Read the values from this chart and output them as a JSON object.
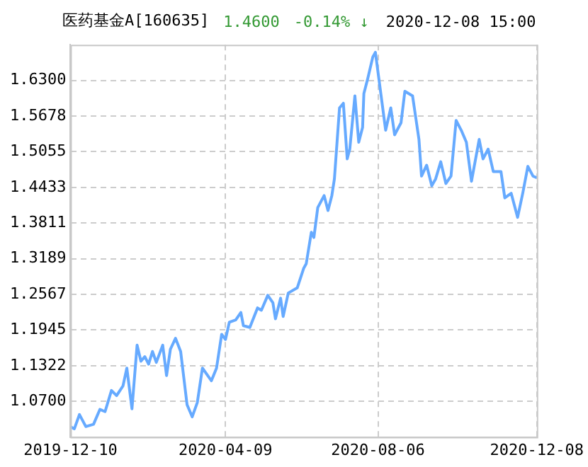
{
  "chart_data": {
    "type": "line",
    "title": "医药基金A[160635]",
    "annotations": [
      "1.4600",
      "-0.14% ↓",
      "2020-12-08 15:00"
    ],
    "x": [
      "2019-12-10",
      "2019-12-13",
      "2019-12-17",
      "2019-12-22",
      "2019-12-28",
      "2020-01-02",
      "2020-01-06",
      "2020-01-11",
      "2020-01-15",
      "2020-01-20",
      "2020-01-23",
      "2020-01-27",
      "2020-01-31",
      "2020-02-03",
      "2020-02-06",
      "2020-02-09",
      "2020-02-12",
      "2020-02-15",
      "2020-02-20",
      "2020-02-23",
      "2020-02-26",
      "2020-03-01",
      "2020-03-05",
      "2020-03-10",
      "2020-03-14",
      "2020-03-18",
      "2020-03-22",
      "2020-03-29",
      "2020-04-02",
      "2020-04-06",
      "2020-04-09",
      "2020-04-12",
      "2020-04-17",
      "2020-04-21",
      "2020-04-23",
      "2020-04-28",
      "2020-05-04",
      "2020-05-07",
      "2020-05-12",
      "2020-05-16",
      "2020-05-18",
      "2020-05-22",
      "2020-05-24",
      "2020-05-28",
      "2020-06-04",
      "2020-06-09",
      "2020-06-11",
      "2020-06-15",
      "2020-06-17",
      "2020-06-20",
      "2020-06-25",
      "2020-06-28",
      "2020-07-01",
      "2020-07-03",
      "2020-07-07",
      "2020-07-10",
      "2020-07-13",
      "2020-07-15",
      "2020-07-19",
      "2020-07-22",
      "2020-07-25",
      "2020-07-26",
      "2020-07-29",
      "2020-08-02",
      "2020-08-04",
      "2020-08-07",
      "2020-08-12",
      "2020-08-16",
      "2020-08-19",
      "2020-08-24",
      "2020-08-27",
      "2020-09-02",
      "2020-09-07",
      "2020-09-09",
      "2020-09-13",
      "2020-09-17",
      "2020-09-20",
      "2020-09-24",
      "2020-09-28",
      "2020-10-02",
      "2020-10-06",
      "2020-10-10",
      "2020-10-14",
      "2020-10-18",
      "2020-10-24",
      "2020-10-27",
      "2020-10-31",
      "2020-11-04",
      "2020-11-10",
      "2020-11-13",
      "2020-11-18",
      "2020-11-23",
      "2020-11-27",
      "2020-12-01",
      "2020-12-05",
      "2020-12-08"
    ],
    "series": [
      {
        "color": "#66aaff",
        "values": [
          1.026,
          1.022,
          1.047,
          1.026,
          1.03,
          1.056,
          1.052,
          1.089,
          1.08,
          1.097,
          1.128,
          1.057,
          1.168,
          1.14,
          1.148,
          1.135,
          1.157,
          1.138,
          1.168,
          1.115,
          1.161,
          1.18,
          1.157,
          1.064,
          1.043,
          1.068,
          1.128,
          1.106,
          1.128,
          1.187,
          1.178,
          1.208,
          1.212,
          1.225,
          1.202,
          1.199,
          1.233,
          1.229,
          1.255,
          1.242,
          1.214,
          1.25,
          1.218,
          1.259,
          1.268,
          1.302,
          1.31,
          1.365,
          1.356,
          1.408,
          1.429,
          1.403,
          1.429,
          1.458,
          1.582,
          1.59,
          1.493,
          1.51,
          1.603,
          1.522,
          1.548,
          1.607,
          1.633,
          1.671,
          1.679,
          1.628,
          1.543,
          1.582,
          1.535,
          1.556,
          1.611,
          1.603,
          1.527,
          1.463,
          1.482,
          1.446,
          1.458,
          1.488,
          1.45,
          1.463,
          1.56,
          1.543,
          1.522,
          1.454,
          1.527,
          1.493,
          1.51,
          1.471,
          1.471,
          1.425,
          1.433,
          1.391,
          1.433,
          1.48,
          1.463,
          1.46
        ]
      }
    ],
    "xlim": [
      "2019-12-10",
      "2020-12-08"
    ],
    "xticks": [
      "2019-12-10",
      "2020-04-09",
      "2020-08-06",
      "2020-12-08"
    ],
    "ylim": [
      1.0078,
      1.6922
    ],
    "yticks": [
      {
        "value": 1.07,
        "label": "1.0700"
      },
      {
        "value": 1.1322,
        "label": "1.1322"
      },
      {
        "value": 1.1945,
        "label": "1.1945"
      },
      {
        "value": 1.2567,
        "label": "1.2567"
      },
      {
        "value": 1.3189,
        "label": "1.3189"
      },
      {
        "value": 1.3811,
        "label": "1.3811"
      },
      {
        "value": 1.4433,
        "label": "1.4433"
      },
      {
        "value": 1.5055,
        "label": "1.5055"
      },
      {
        "value": 1.5678,
        "label": "1.5678"
      },
      {
        "value": 1.63,
        "label": "1.6300"
      }
    ],
    "grid": true,
    "legend": false,
    "marker": "none",
    "line_style": "solid"
  }
}
